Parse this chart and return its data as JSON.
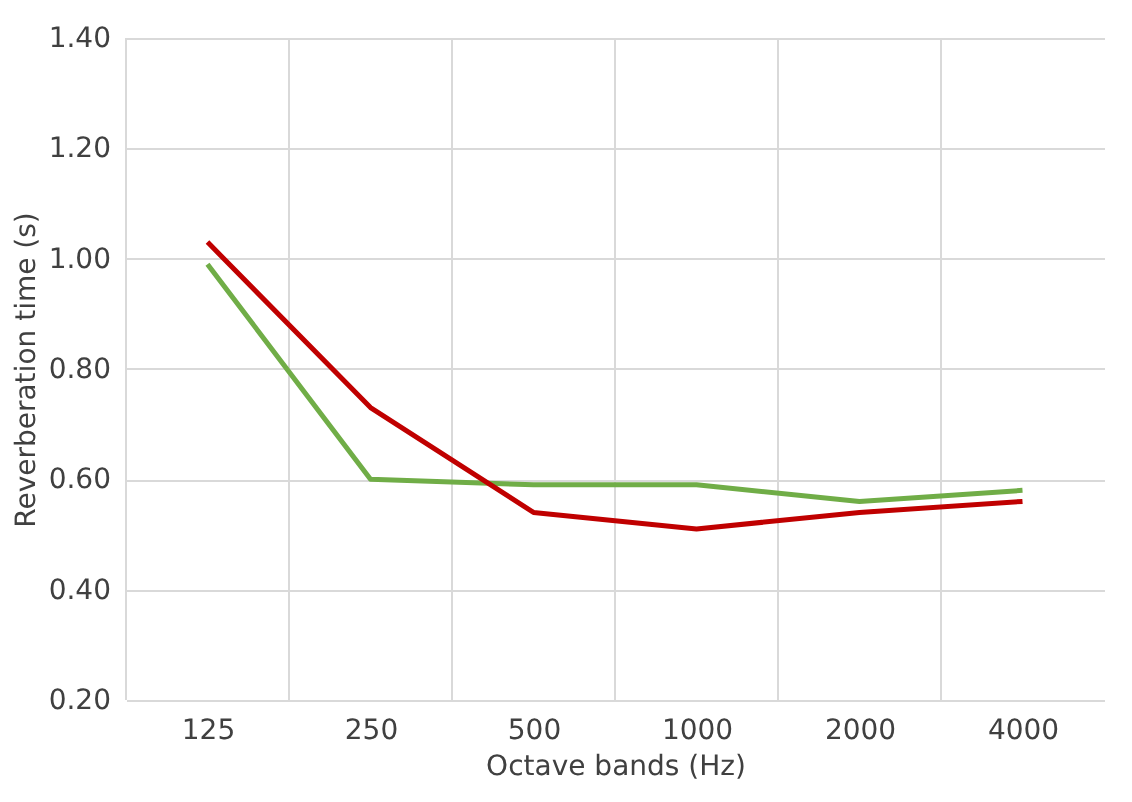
{
  "chart_data": {
    "type": "line",
    "xlabel": "Octave bands (Hz)",
    "ylabel": "Reverberation time (s)",
    "categories": [
      "125",
      "250",
      "500",
      "1000",
      "2000",
      "4000"
    ],
    "series": [
      {
        "color": "#70ad47",
        "values": [
          0.99,
          0.6,
          0.59,
          0.59,
          0.56,
          0.58
        ]
      },
      {
        "color": "#c00000",
        "values": [
          1.03,
          0.73,
          0.54,
          0.51,
          0.54,
          0.56
        ]
      }
    ],
    "ylim": [
      0.2,
      1.4
    ],
    "yticks": [
      {
        "value": 0.2,
        "label": "0.20"
      },
      {
        "value": 0.4,
        "label": "0.40"
      },
      {
        "value": 0.6,
        "label": "0.60"
      },
      {
        "value": 0.8,
        "label": "0.80"
      },
      {
        "value": 1.0,
        "label": "1.00"
      },
      {
        "value": 1.2,
        "label": "1.20"
      },
      {
        "value": 1.4,
        "label": "1.40"
      }
    ],
    "grid": true,
    "legend": false,
    "marker": "none",
    "line_style": "solid"
  }
}
